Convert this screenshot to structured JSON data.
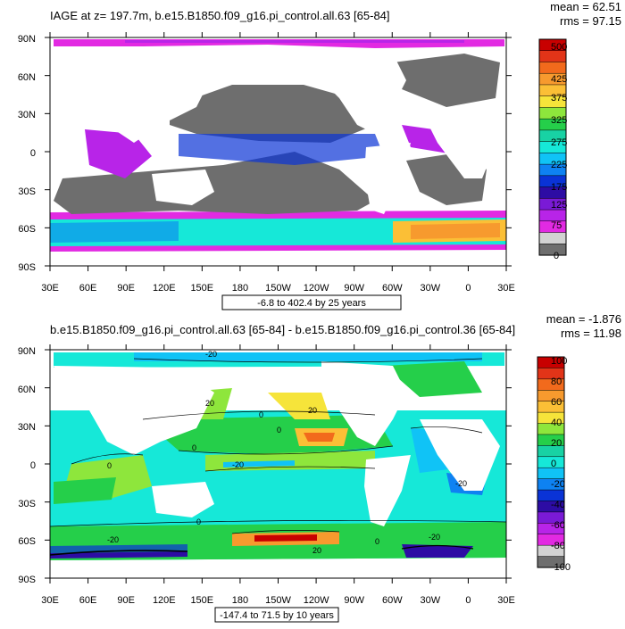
{
  "panels": [
    {
      "title": "IAGE at z= 197.7m, b.e15.B1850.f09_g16.pi_control.all.63 [65-84]",
      "stats": {
        "mean": "mean = 62.51",
        "rms": "rms = 97.15"
      },
      "range_caption": "-6.8 to 402.4 by 25 years",
      "colorbar": {
        "labels": [
          "500",
          "425",
          "375",
          "325",
          "275",
          "225",
          "175",
          "125",
          "75",
          "0"
        ],
        "colors": [
          "#c80000",
          "#e23418",
          "#f26a1c",
          "#f79a2e",
          "#fbbf36",
          "#f6e43a",
          "#8ee63c",
          "#25cf4a",
          "#18d2a4",
          "#16e8d8",
          "#10c3f6",
          "#0e82f2",
          "#0a33d6",
          "#2d0ca4",
          "#7a1ad6",
          "#b824e8",
          "#e22ae2",
          "#d2d2d2",
          "#6e6e6e"
        ]
      }
    },
    {
      "title": "b.e15.B1850.f09_g16.pi_control.all.63 [65-84] - b.e15.B1850.f09_g16.pi_control.36 [65-84]",
      "stats": {
        "mean": "mean = -1.876",
        "rms": "rms = 11.98"
      },
      "range_caption": "-147.4 to 71.5 by 10 years",
      "contour_labels": [
        "-20",
        "0",
        "20",
        "0",
        "-20",
        "0",
        "20",
        "0",
        "-20",
        "-20",
        "0",
        "-20",
        "0",
        "20"
      ],
      "colorbar": {
        "labels": [
          "100",
          "80",
          "60",
          "40",
          "20",
          "0",
          "-20",
          "-40",
          "-60",
          "-80",
          "-100"
        ],
        "colors": [
          "#c80000",
          "#e23418",
          "#f26a1c",
          "#f79a2e",
          "#fbbf36",
          "#f6e43a",
          "#8ee63c",
          "#25cf4a",
          "#18d2a4",
          "#16e8d8",
          "#10c3f6",
          "#0e82f2",
          "#0a33d6",
          "#2d0ca4",
          "#7a1ad6",
          "#b824e8",
          "#e22ae2",
          "#d2d2d2",
          "#6e6e6e"
        ]
      }
    }
  ],
  "axes": {
    "lat_labels": [
      "90N",
      "60N",
      "30N",
      "0",
      "30S",
      "60S",
      "90S"
    ],
    "lon_labels": [
      "30E",
      "60E",
      "90E",
      "120E",
      "150E",
      "180",
      "150W",
      "120W",
      "90W",
      "60W",
      "30W",
      "0",
      "30E"
    ]
  }
}
